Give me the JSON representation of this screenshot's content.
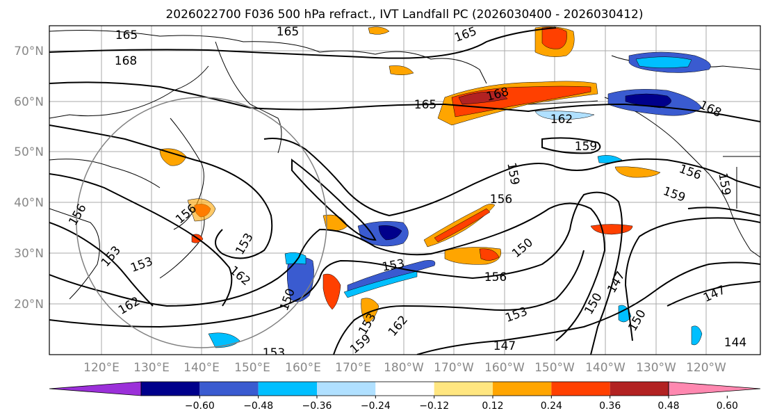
{
  "title": "2026022700 F036 500 hPa refract., IVT Landfall PC (2026030400 - 2026030412)",
  "axes": {
    "lat_labels": [
      "70°N",
      "60°N",
      "50°N",
      "40°N",
      "30°N",
      "20°N"
    ],
    "lon_labels": [
      "120°E",
      "130°E",
      "140°E",
      "150°E",
      "160°E",
      "170°E",
      "180°W",
      "170°W",
      "160°W",
      "150°W",
      "140°W",
      "130°W",
      "120°W"
    ]
  },
  "contour_labels": [
    {
      "name": "contour-label-165-a",
      "text": "165"
    },
    {
      "name": "contour-label-165-b",
      "text": "165"
    },
    {
      "name": "contour-label-165-c",
      "text": "165"
    },
    {
      "name": "contour-label-168-a",
      "text": "168"
    },
    {
      "name": "contour-label-165-d",
      "text": "165"
    },
    {
      "name": "contour-label-168-b",
      "text": "168"
    },
    {
      "name": "contour-label-162-a",
      "text": "162"
    },
    {
      "name": "contour-label-159-a",
      "text": "159"
    },
    {
      "name": "contour-label-168-c",
      "text": "168"
    },
    {
      "name": "contour-label-156-a",
      "text": "156"
    },
    {
      "name": "contour-label-159-b",
      "text": "159"
    },
    {
      "name": "contour-label-156-b",
      "text": "156"
    },
    {
      "name": "contour-label-159-c",
      "text": "159"
    },
    {
      "name": "contour-label-156-c",
      "text": "156"
    },
    {
      "name": "contour-label-153-a",
      "text": "153"
    },
    {
      "name": "contour-label-153-b",
      "text": "153"
    },
    {
      "name": "contour-label-150-a",
      "text": "150"
    },
    {
      "name": "contour-label-153-c",
      "text": "153"
    },
    {
      "name": "contour-label-156-d",
      "text": "156"
    },
    {
      "name": "contour-label-150-b",
      "text": "150"
    },
    {
      "name": "contour-label-147-a",
      "text": "147"
    },
    {
      "name": "contour-label-150-c",
      "text": "150"
    },
    {
      "name": "contour-label-150-d",
      "text": "150"
    },
    {
      "name": "contour-label-147-b",
      "text": "147"
    },
    {
      "name": "contour-label-153-d",
      "text": "153"
    },
    {
      "name": "contour-label-162-b",
      "text": "162"
    },
    {
      "name": "contour-label-159-d",
      "text": "159"
    },
    {
      "name": "contour-label-153-e",
      "text": "153"
    },
    {
      "name": "contour-label-147-c",
      "text": "147"
    },
    {
      "name": "contour-label-144-a",
      "text": "144"
    },
    {
      "name": "contour-label-162-c",
      "text": "162"
    },
    {
      "name": "contour-label-162-d",
      "text": "162"
    },
    {
      "name": "contour-label-153-f",
      "text": "153"
    },
    {
      "name": "contour-label-159-e",
      "text": "159"
    },
    {
      "name": "contour-label-156-e",
      "text": "156"
    },
    {
      "name": "contour-label-153-g",
      "text": "153"
    }
  ],
  "colorbar": {
    "colors": [
      "#9b30d9",
      "#00008b",
      "#3a5bd0",
      "#00bfff",
      "#b0e0ff",
      "#ffffff",
      "#ffe680",
      "#ffa500",
      "#ff4000",
      "#b22222",
      "#ff88b0"
    ],
    "tick_labels": [
      "−0.60",
      "−0.48",
      "−0.36",
      "−0.24",
      "−0.12",
      "0.12",
      "0.24",
      "0.36",
      "0.48",
      "0.60"
    ]
  },
  "palette": {
    "contour": "#000000",
    "grid": "#aaaaaa",
    "circle": "#808080",
    "axis_text": "#888888"
  }
}
